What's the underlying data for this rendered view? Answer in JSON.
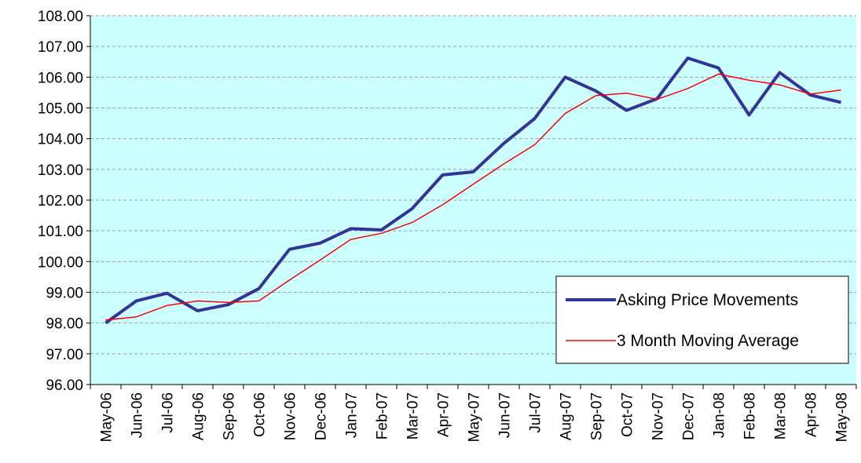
{
  "chart_data": {
    "type": "line",
    "categories": [
      "May-06",
      "Jun-06",
      "Jul-06",
      "Aug-06",
      "Sep-06",
      "Oct-06",
      "Nov-06",
      "Dec-06",
      "Jan-07",
      "Feb-07",
      "Mar-07",
      "Apr-07",
      "May-07",
      "Jun-07",
      "Jul-07",
      "Aug-07",
      "Sep-07",
      "Oct-07",
      "Nov-07",
      "Dec-07",
      "Jan-08",
      "Feb-08",
      "Mar-08",
      "Apr-08",
      "May-08"
    ],
    "series": [
      {
        "name": "Asking Price Movements",
        "color": "#333399",
        "values": [
          98.0,
          98.72,
          98.97,
          98.4,
          98.6,
          99.12,
          100.4,
          100.6,
          101.07,
          101.03,
          101.72,
          102.82,
          102.92,
          103.85,
          104.65,
          106.0,
          105.55,
          104.92,
          105.3,
          106.62,
          106.3,
          104.77,
          106.15,
          105.42,
          105.18
        ]
      },
      {
        "name": "3 Month Moving Average",
        "color": "#ff0000",
        "values": [
          98.1,
          98.2,
          98.57,
          98.72,
          98.67,
          98.72,
          99.4,
          100.05,
          100.72,
          100.92,
          101.27,
          101.85,
          102.52,
          103.18,
          103.8,
          104.82,
          105.4,
          105.48,
          105.28,
          105.63,
          106.1,
          105.9,
          105.75,
          105.45,
          105.58
        ]
      }
    ],
    "ylim": [
      96,
      108
    ],
    "yticks": [
      {
        "value": 96,
        "label": "96.00"
      },
      {
        "value": 97,
        "label": "97.00"
      },
      {
        "value": 98,
        "label": "98.00"
      },
      {
        "value": 99,
        "label": "99.00"
      },
      {
        "value": 100,
        "label": "100.00"
      },
      {
        "value": 101,
        "label": "101.00"
      },
      {
        "value": 102,
        "label": "102.00"
      },
      {
        "value": 103,
        "label": "103.00"
      },
      {
        "value": 104,
        "label": "104.00"
      },
      {
        "value": 105,
        "label": "105.00"
      },
      {
        "value": 106,
        "label": "106.00"
      },
      {
        "value": 107,
        "label": "107.00"
      },
      {
        "value": 108,
        "label": "108.00"
      }
    ],
    "grid": true,
    "legend": "lower right"
  }
}
